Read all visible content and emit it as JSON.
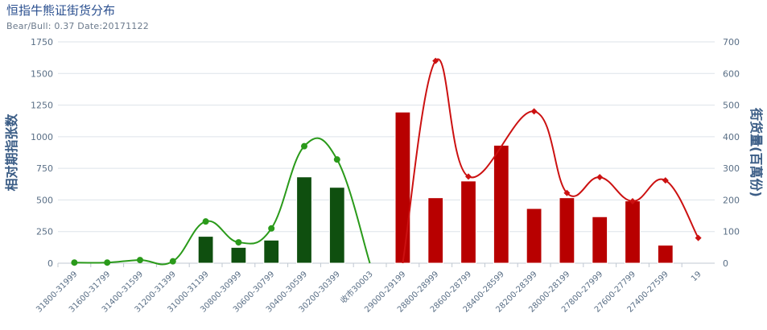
{
  "title": "恒指牛熊证街货分布",
  "subtitle": "Bear/Bull: 0.37 Date:20171122",
  "chart_data": {
    "type": "bar",
    "categories": [
      "31800-31999",
      "31600-31799",
      "31400-31599",
      "31200-31399",
      "31000-31199",
      "30800-30999",
      "30600-30799",
      "30400-30599",
      "30200-30399",
      "收市30003",
      "29000-29199",
      "28800-28999",
      "28600-28799",
      "28400-28599",
      "28200-28399",
      "28000-28199",
      "27800-27999",
      "27600-27799",
      "27400-27599",
      "19"
    ],
    "ylabel_left": "相对期指张数",
    "ylabel_right": "街货量(百萬份)",
    "ylim_left": [
      0,
      1750
    ],
    "ylim_right": [
      0,
      700
    ],
    "yticks_left": [
      "0",
      "250",
      "500",
      "750",
      "1000",
      "1250",
      "1500",
      "1750"
    ],
    "yticks_right": [
      "0",
      "100",
      "200",
      "300",
      "400",
      "500",
      "600",
      "700"
    ],
    "colors": {
      "bull": "#0f4f0f",
      "bear": "#b80000",
      "bull_line": "#2a9a1a",
      "bear_line": "#cc1111",
      "grid": "#dde3ea"
    },
    "series": [
      {
        "kind": "bar",
        "axis": "right",
        "color_key": "bull",
        "values": [
          null,
          null,
          null,
          null,
          85,
          50,
          73,
          273,
          240,
          null,
          null,
          null,
          null,
          null,
          null,
          null,
          null,
          null,
          null,
          null
        ]
      },
      {
        "kind": "bar",
        "axis": "right",
        "color_key": "bear",
        "values": [
          null,
          null,
          null,
          null,
          null,
          null,
          null,
          null,
          null,
          null,
          478,
          207,
          260,
          373,
          173,
          207,
          147,
          197,
          57,
          null
        ]
      },
      {
        "kind": "line",
        "axis": "left",
        "color_key": "bull_line",
        "values": [
          5,
          5,
          25,
          15,
          330,
          165,
          275,
          925,
          820,
          null,
          null,
          null,
          null,
          null,
          null,
          null,
          null,
          null,
          null,
          null
        ]
      },
      {
        "kind": "line",
        "axis": "left",
        "color_key": "bear_line",
        "values": [
          null,
          null,
          null,
          null,
          null,
          null,
          null,
          null,
          null,
          null,
          null,
          1600,
          685,
          null,
          1200,
          555,
          680,
          490,
          655,
          200
        ]
      }
    ]
  }
}
